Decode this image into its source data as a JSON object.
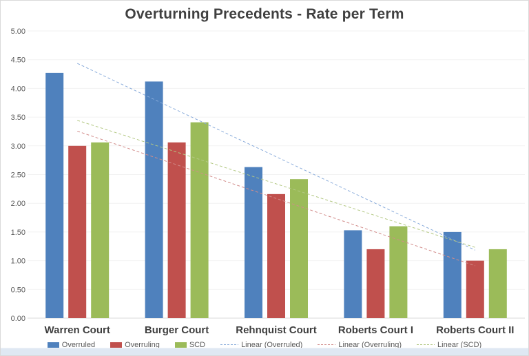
{
  "chart": {
    "title": "Overturning Precedents - Rate per Term"
  },
  "chart_data": {
    "type": "bar",
    "title": "Overturning Precedents - Rate per Term",
    "categories": [
      "Warren Court",
      "Burger Court",
      "Rehnquist Court",
      "Roberts Court I",
      "Roberts Court II"
    ],
    "series": [
      {
        "name": "Overruled",
        "color": "#4F81BD",
        "values": [
          4.27,
          4.12,
          2.63,
          1.53,
          1.5
        ]
      },
      {
        "name": "Overruling",
        "color": "#C0504D",
        "values": [
          3.0,
          3.06,
          2.16,
          1.2,
          1.0
        ]
      },
      {
        "name": "SCD",
        "color": "#9BBB59",
        "values": [
          3.06,
          3.41,
          2.42,
          1.6,
          1.2
        ]
      }
    ],
    "trendlines": [
      {
        "name": "Linear (Overruled)",
        "series_index": 0,
        "color": "#8AACDB"
      },
      {
        "name": "Linear (Overruling)",
        "series_index": 1,
        "color": "#D28C8A"
      },
      {
        "name": "Linear (SCD)",
        "series_index": 2,
        "color": "#B3C883"
      }
    ],
    "legend": [
      {
        "label": "Overruled",
        "type": "bar",
        "color": "#4F81BD"
      },
      {
        "label": "Overruling",
        "type": "bar",
        "color": "#C0504D"
      },
      {
        "label": "SCD",
        "type": "bar",
        "color": "#9BBB59"
      },
      {
        "label": "Linear (Overruled)",
        "type": "line",
        "color": "#8AACDB"
      },
      {
        "label": "Linear (Overruling)",
        "type": "line",
        "color": "#D28C8A"
      },
      {
        "label": "Linear (SCD)",
        "type": "line",
        "color": "#B3C883"
      }
    ],
    "ylim": [
      0,
      5
    ],
    "y_tick_step": 0.5,
    "y_tick_labels": [
      "5.00",
      "4.50",
      "4.00",
      "3.50",
      "3.00",
      "2.50",
      "2.00",
      "1.50",
      "1.00",
      "0.50",
      "0.00"
    ],
    "grid": true,
    "legend_position": "bottom",
    "colors": {
      "title_text": "#404040",
      "axis_text": "#595959",
      "category_text": "#3f3f3f",
      "gridline": "#f2f2f2",
      "axis_line": "#d9d9d9",
      "sheet_strip": "#dfe8f3"
    }
  }
}
